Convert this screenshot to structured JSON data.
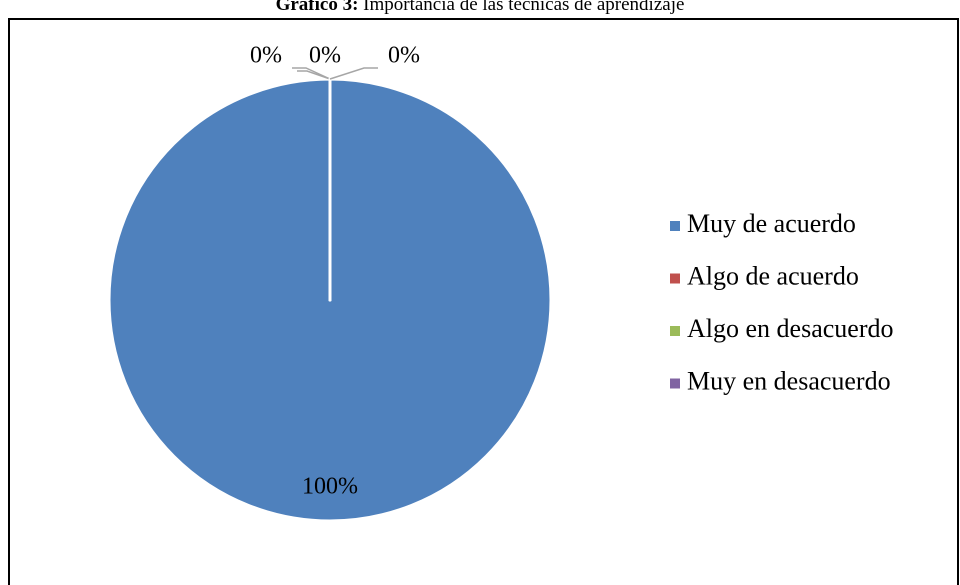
{
  "chart_data": {
    "type": "pie",
    "title_prefix": "Gráfico 3:",
    "title": "Importancia de las técnicas de aprendizaje",
    "categories": [
      "Muy de acuerdo",
      "Algo de acuerdo",
      "Algo en desacuerdo",
      "Muy en desacuerdo"
    ],
    "values": [
      100,
      0,
      0,
      0
    ],
    "value_labels": [
      "100%",
      "0%",
      "0%",
      "0%"
    ],
    "colors": [
      "#4f81bd",
      "#c0504d",
      "#9bbb59",
      "#8064a2"
    ],
    "legend": "right"
  }
}
